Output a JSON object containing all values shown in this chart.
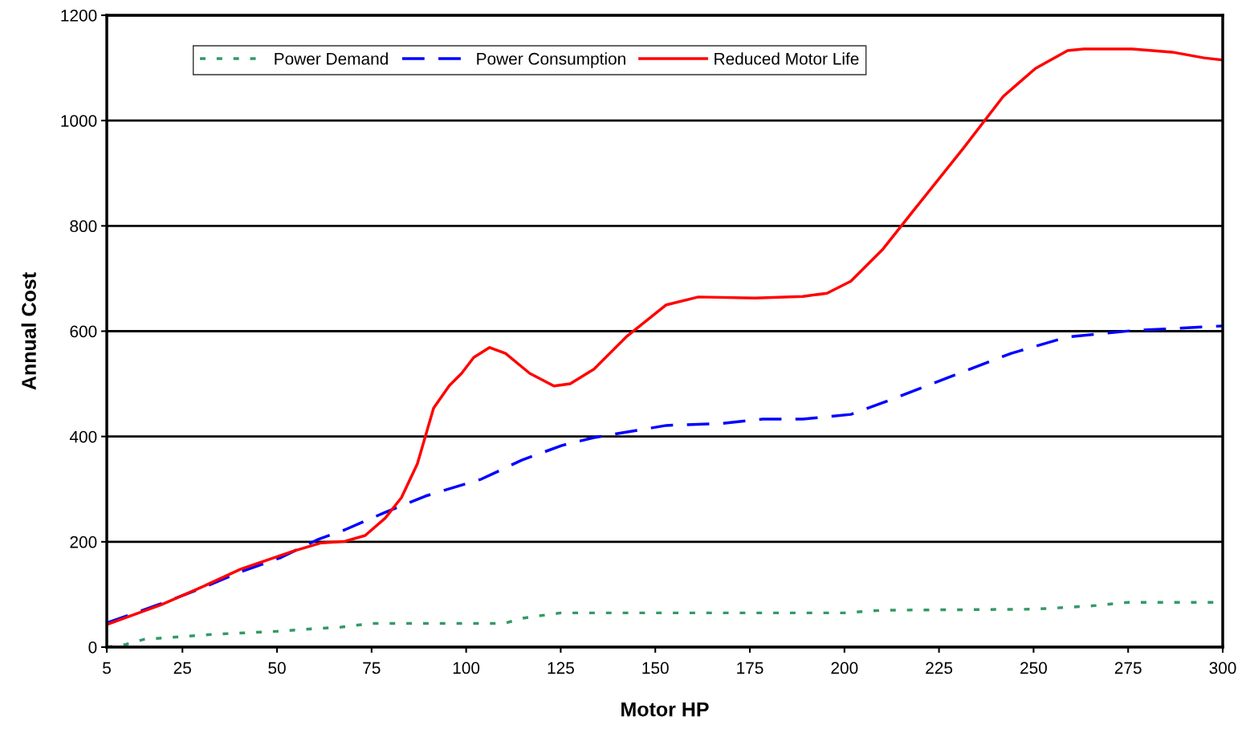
{
  "chart_data": {
    "type": "line",
    "xlabel": "Motor HP",
    "ylabel": "Annual Cost",
    "xlim": [
      5,
      300
    ],
    "xticks": [
      5,
      25,
      50,
      75,
      100,
      125,
      150,
      175,
      200,
      225,
      250,
      275,
      300
    ],
    "ylim": [
      0,
      1200
    ],
    "yticks": [
      0,
      200,
      400,
      600,
      800,
      1000,
      1200
    ],
    "grid": "y",
    "legend": "top left",
    "series": [
      {
        "name": "Power Demand",
        "color": "#339966",
        "line_style": "dotted",
        "x": [
          5,
          10,
          15,
          25,
          35,
          50,
          60,
          67,
          75,
          110,
          115,
          125,
          200,
          210,
          250,
          265,
          275,
          300
        ],
        "values": [
          0,
          5,
          15,
          20,
          25,
          30,
          35,
          38,
          45,
          45,
          55,
          65,
          65,
          70,
          72,
          78,
          85,
          85
        ]
      },
      {
        "name": "Power Consumption",
        "color": "#0000ff",
        "line_style": "dashed",
        "x": [
          5,
          19.2,
          29.8,
          40.4,
          51,
          61,
          68,
          78.6,
          89.3,
          104,
          114.7,
          125.3,
          133.8,
          152.9,
          167.8,
          178.4,
          189,
          201.7,
          212.3,
          231.4,
          244.1,
          259,
          276,
          300
        ],
        "values": [
          46,
          82,
          111,
          143,
          170,
          205,
          223,
          256,
          287,
          319,
          355,
          383,
          398,
          421,
          425,
          433,
          433,
          442,
          470,
          523,
          558,
          589,
          601,
          610
        ]
      },
      {
        "name": "Reduced Motor Life",
        "color": "#ff0000",
        "line_style": "solid",
        "x": [
          5,
          19.2,
          29.8,
          40.4,
          54.2,
          61.7,
          68,
          73.3,
          78.6,
          82.9,
          87.1,
          91.4,
          95.6,
          98.8,
          102,
          106.2,
          110.4,
          116.8,
          123.2,
          127.5,
          133.8,
          142.3,
          152.9,
          161.4,
          176.3,
          189,
          195.4,
          201.7,
          210.2,
          218.7,
          231.4,
          242,
          250.5,
          259,
          263.3,
          276,
          286.6,
          295.1,
          300
        ],
        "values": [
          43,
          80,
          113,
          148,
          182,
          198,
          201,
          212,
          245,
          284,
          348,
          454,
          497,
          520,
          550,
          569,
          558,
          520,
          496,
          500,
          528,
          589,
          650,
          665,
          663,
          666,
          672,
          695,
          756,
          833,
          947,
          1046,
          1099,
          1133,
          1136,
          1136,
          1130,
          1119,
          1115
        ]
      }
    ]
  }
}
